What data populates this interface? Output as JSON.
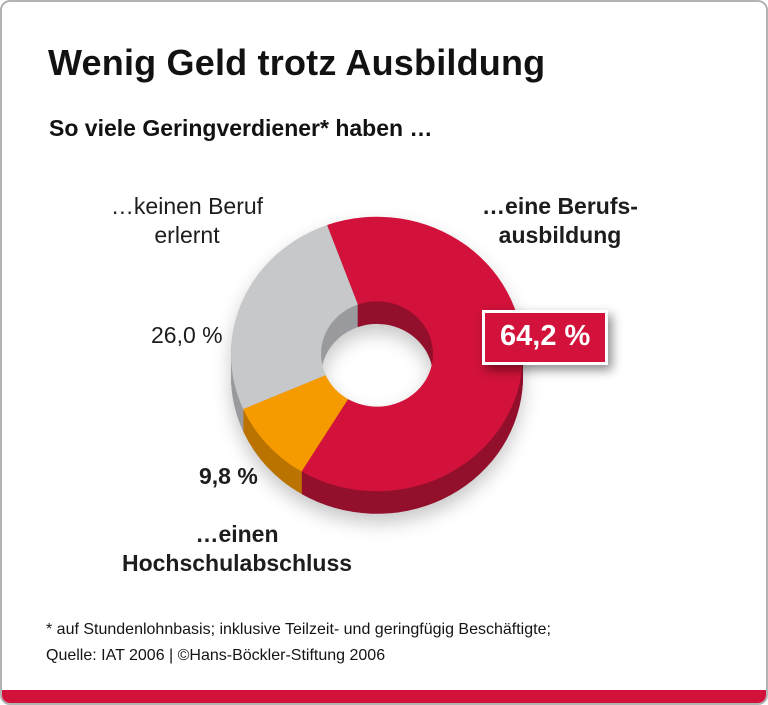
{
  "header": {
    "title": "Wenig Geld trotz Ausbildung",
    "subtitle": "So viele Geringverdiener* haben …"
  },
  "chart_data": {
    "type": "pie",
    "donut": true,
    "title": "So viele Geringverdiener* haben …",
    "unit": "%",
    "start_angle_deg": -20,
    "legend_position": "around",
    "segments": [
      {
        "label": "…eine Berufsausbildung",
        "value": 64.2,
        "display": "64,2 %",
        "color": "#d2123a",
        "depth_color": "#93102c"
      },
      {
        "label": "…einen Hochschulabschluss",
        "value": 9.8,
        "display": "9,8 %",
        "color": "#f59b00",
        "depth_color": "#bb7300"
      },
      {
        "label": "…keinen Beruf erlernt",
        "value": 26.0,
        "display": "26,0 %",
        "color": "#c7c8ca",
        "depth_color": "#9a9b9e"
      }
    ]
  },
  "labels": {
    "no_profession": {
      "line1": "…keinen Beruf",
      "line2": "erlernt"
    },
    "vocational": {
      "line1": "…eine Berufs-",
      "line2": "ausbildung"
    },
    "university": {
      "line1": "…einen",
      "line2": "Hochschulabschluss"
    }
  },
  "footer": {
    "footnote": "* auf Stundenlohnbasis; inklusive Teilzeit- und geringfügig Beschäftigte;",
    "source": "Quelle: IAT 2006 | ©Hans-Böckler-Stiftung 2006"
  },
  "colors": {
    "accent_red": "#d2123a",
    "text": "#141414",
    "background": "#ffffff"
  }
}
